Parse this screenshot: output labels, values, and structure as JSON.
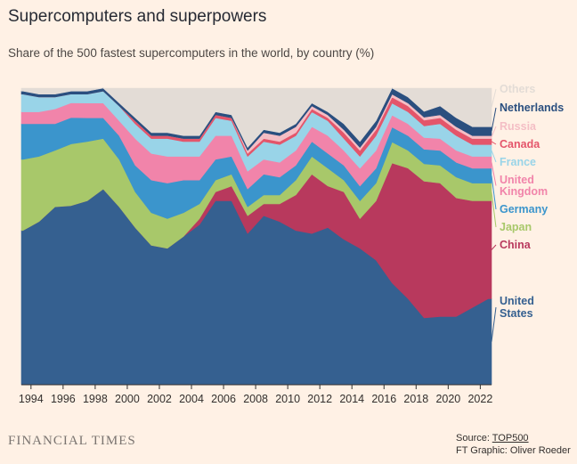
{
  "header": {
    "title": "Supercomputers and superpowers",
    "subtitle": "Share of the 500 fastest supercomputers in the world, by country (%)"
  },
  "footer": {
    "brand": "FINANCIAL TIMES",
    "source_prefix": "Source: ",
    "source_link": "TOP500",
    "credit": "FT Graphic: Oliver Roeder"
  },
  "chart_data": {
    "type": "area",
    "stacked": true,
    "title": "Supercomputers and superpowers",
    "subtitle": "Share of the 500 fastest supercomputers in the world, by country (%)",
    "xlabel": "",
    "ylabel": "",
    "xlim": [
      1993.4,
      2022.7
    ],
    "ylim": [
      0,
      100
    ],
    "x_ticks": [
      "1994",
      "1996",
      "1998",
      "2000",
      "2002",
      "2004",
      "2006",
      "2008",
      "2010",
      "2012",
      "2014",
      "2016",
      "2018",
      "2020",
      "2022"
    ],
    "x": [
      1993.5,
      1994.5,
      1995.5,
      1996.5,
      1997.5,
      1998.5,
      1999.5,
      2000.5,
      2001.5,
      2002.5,
      2003.5,
      2004.5,
      2005.5,
      2006.5,
      2007.5,
      2008.5,
      2009.5,
      2010.5,
      2011.5,
      2012.5,
      2013.5,
      2014.5,
      2015.5,
      2016.5,
      2017.5,
      2018.5,
      2019.5,
      2020.5,
      2021.5,
      2022.5
    ],
    "series": [
      {
        "name": "United States",
        "color": "#356090",
        "values": [
          52,
          55,
          60,
          61,
          62,
          66,
          60,
          53,
          47,
          46,
          50,
          54,
          62,
          62,
          51,
          57,
          55,
          52,
          51,
          53,
          49,
          46,
          42,
          34,
          29,
          23,
          23,
          23,
          26,
          29
        ]
      },
      {
        "name": "China",
        "color": "#b8395d",
        "values": [
          0,
          0,
          0,
          0,
          0,
          0,
          0,
          0,
          0,
          0,
          0,
          2,
          3,
          5,
          6,
          4,
          6,
          12,
          20,
          14,
          16,
          10,
          20,
          40,
          44,
          47,
          45,
          40,
          36,
          33
        ]
      },
      {
        "name": "Japan",
        "color": "#a8c86a",
        "values": [
          24,
          22,
          19,
          21,
          20,
          17,
          16,
          12,
          11,
          10,
          8,
          5,
          4,
          4,
          3,
          3,
          3,
          5,
          6,
          6,
          4,
          6,
          6,
          7,
          6,
          6,
          6,
          7,
          6,
          6
        ]
      },
      {
        "name": "Germany",
        "color": "#3b95cc",
        "values": [
          12,
          11,
          9,
          9,
          8,
          7,
          8,
          9,
          11,
          12,
          11,
          8,
          7,
          6,
          6,
          7,
          6,
          5,
          5,
          5,
          5,
          5,
          5,
          5,
          5,
          5,
          5,
          5,
          5,
          5
        ]
      },
      {
        "name": "United Kingdom",
        "color": "#f184aa",
        "values": [
          4,
          4,
          5,
          5,
          5,
          5,
          5,
          9,
          9,
          9,
          8,
          8,
          8,
          7,
          6,
          5,
          5,
          5,
          5,
          6,
          5,
          6,
          6,
          4,
          4,
          4,
          4,
          4,
          4,
          4
        ]
      },
      {
        "name": "France",
        "color": "#99d4e8",
        "values": [
          6,
          5,
          4,
          3,
          3,
          4,
          5,
          5,
          5,
          6,
          5,
          5,
          6,
          5,
          5,
          6,
          6,
          5,
          5,
          5,
          4,
          4,
          5,
          4,
          4,
          4,
          5,
          5,
          4,
          4
        ]
      },
      {
        "name": "Canada",
        "color": "#e4556a",
        "values": [
          0,
          0,
          0,
          0,
          0,
          0,
          0,
          1,
          1,
          1,
          1,
          1,
          1,
          1,
          1,
          1,
          1,
          1,
          1,
          1,
          2,
          2,
          2,
          2,
          2,
          2,
          2,
          2,
          2,
          2
        ]
      },
      {
        "name": "Russia",
        "color": "#f4bec5",
        "values": [
          0,
          0,
          0,
          0,
          0,
          0,
          0,
          0,
          0,
          0,
          0,
          0,
          0,
          0,
          1,
          2,
          2,
          2,
          1,
          1,
          1,
          1,
          1,
          1,
          1,
          1,
          1,
          1,
          1,
          1
        ]
      },
      {
        "name": "Netherlands",
        "color": "#2a4f7f",
        "values": [
          1,
          1,
          1,
          1,
          1,
          1,
          1,
          1,
          1,
          1,
          1,
          1,
          1,
          1,
          1,
          1,
          1,
          1,
          1,
          1,
          2,
          2,
          2,
          2,
          2,
          2,
          3,
          3,
          3,
          3
        ]
      },
      {
        "name": "Others",
        "color": "#e3dcd6",
        "values": [
          1,
          2,
          2,
          1,
          1,
          0,
          5,
          10,
          15,
          15,
          16,
          16,
          8,
          9,
          20,
          14,
          15,
          12,
          5,
          8,
          12,
          18,
          11,
          0,
          3,
          8,
          6,
          10,
          13,
          13
        ]
      }
    ],
    "legend_placement": "right",
    "grid": false
  }
}
